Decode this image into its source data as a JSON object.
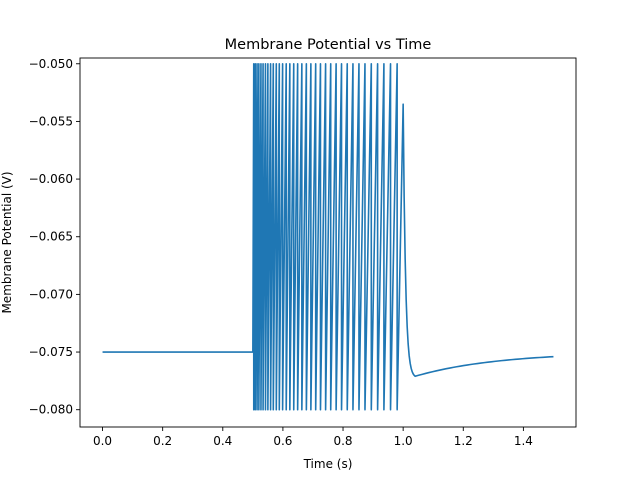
{
  "chart_data": {
    "type": "line",
    "title": "Membrane Potential vs Time",
    "xlabel": "Time (s)",
    "ylabel": "Membrane Potential (V)",
    "xlim": [
      -0.075,
      1.575
    ],
    "ylim": [
      -0.0815,
      -0.0495
    ],
    "x_ticks": [
      0.0,
      0.2,
      0.4,
      0.6,
      0.8,
      1.0,
      1.2,
      1.4
    ],
    "x_tick_labels": [
      "0.0",
      "0.2",
      "0.4",
      "0.6",
      "0.8",
      "1.0",
      "1.2",
      "1.4"
    ],
    "y_ticks": [
      -0.05,
      -0.055,
      -0.06,
      -0.065,
      -0.07,
      -0.075,
      -0.08
    ],
    "y_tick_labels": [
      "−0.050",
      "−0.055",
      "−0.060",
      "−0.065",
      "−0.070",
      "−0.075",
      "−0.080"
    ],
    "grid": false,
    "line_color": "#1f77b4",
    "series": [
      {
        "resting_potential": -0.075,
        "stimulus_on": 0.5,
        "stimulus_off": 1.0,
        "threshold": -0.05,
        "reset_potential": -0.08,
        "spike_times": [
          0.503,
          0.508,
          0.514,
          0.52,
          0.527,
          0.534,
          0.542,
          0.55,
          0.559,
          0.568,
          0.578,
          0.588,
          0.599,
          0.611,
          0.623,
          0.636,
          0.649,
          0.663,
          0.678,
          0.693,
          0.709,
          0.725,
          0.742,
          0.759,
          0.777,
          0.795,
          0.814,
          0.833,
          0.853,
          0.873,
          0.894,
          0.915,
          0.936,
          0.958,
          0.98
        ],
        "value_at_stimulus_off": -0.0535,
        "after_trough_time": 1.04,
        "after_trough_value": -0.0771,
        "end_time": 1.5,
        "end_value": -0.0754
      }
    ]
  }
}
